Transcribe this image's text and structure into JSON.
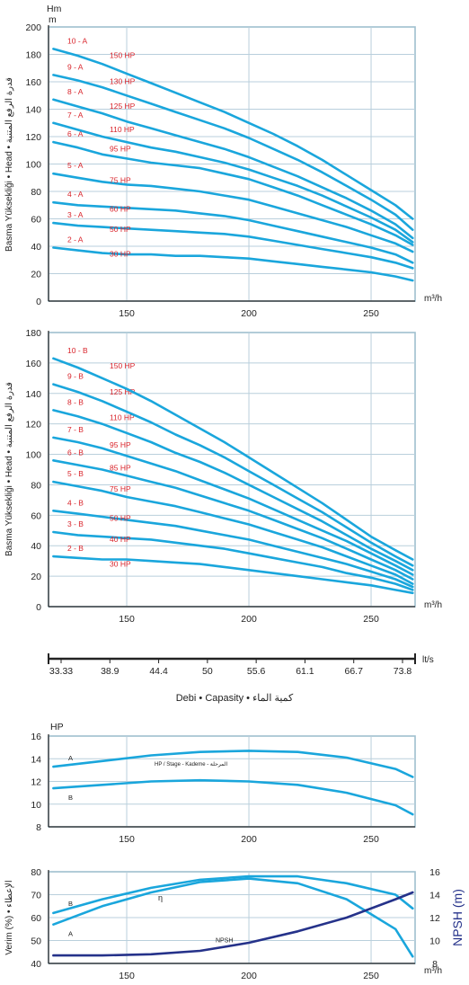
{
  "colors": {
    "curve": "#1aa6dc",
    "npsh": "#25328a",
    "grid": "#b9cfdc",
    "frame": "#9fbfcf",
    "label_red": "#d9242b",
    "axis": "#222222"
  },
  "chart_data": [
    {
      "id": "head-a",
      "type": "line",
      "title": "",
      "xlabel": "m³/h",
      "ylabel_units": [
        "Hm",
        "m"
      ],
      "ylabel_side": "Basma Yüksekliği • Head • قدرة الرفع المتنبة",
      "xlim": [
        118,
        268
      ],
      "ylim": [
        0,
        200
      ],
      "xticks": [
        "150",
        "200",
        "250"
      ],
      "yticks": [
        "0",
        "20",
        "40",
        "60",
        "80",
        "100",
        "120",
        "140",
        "160",
        "180",
        "200"
      ],
      "grid": true,
      "x": [
        120,
        130,
        140,
        150,
        160,
        170,
        180,
        190,
        200,
        210,
        220,
        230,
        240,
        250,
        260,
        267
      ],
      "series": [
        {
          "name": "2 - A",
          "hp": "30 HP",
          "values": [
            39,
            37,
            35,
            34,
            34,
            33,
            33,
            32,
            31,
            29,
            27,
            25,
            23,
            21,
            18,
            15
          ]
        },
        {
          "name": "3 - A",
          "hp": "50 HP",
          "values": [
            57,
            55,
            54,
            53,
            52,
            51,
            50,
            49,
            47,
            44,
            41,
            38,
            35,
            32,
            28,
            24
          ]
        },
        {
          "name": "4 - A",
          "hp": "60 HP",
          "values": [
            72,
            70,
            69,
            68,
            67,
            66,
            64,
            62,
            59,
            55,
            51,
            47,
            43,
            39,
            34,
            28
          ]
        },
        {
          "name": "5 - A",
          "hp": "75 HP",
          "values": [
            93,
            90,
            87,
            85,
            84,
            82,
            80,
            77,
            74,
            69,
            64,
            59,
            54,
            48,
            42,
            36
          ]
        },
        {
          "name": "6 - A",
          "hp": "95 HP",
          "values": [
            116,
            112,
            107,
            104,
            101,
            99,
            97,
            93,
            89,
            83,
            77,
            70,
            63,
            56,
            48,
            41
          ]
        },
        {
          "name": "7 - A",
          "hp": "110 HP",
          "values": [
            130,
            125,
            120,
            116,
            112,
            109,
            105,
            101,
            96,
            90,
            84,
            77,
            69,
            61,
            52,
            43
          ]
        },
        {
          "name": "8 - A",
          "hp": "125 HP",
          "values": [
            147,
            142,
            137,
            131,
            126,
            121,
            116,
            111,
            105,
            98,
            91,
            83,
            75,
            66,
            56,
            46
          ]
        },
        {
          "name": "9 - A",
          "hp": "130 HP",
          "values": [
            165,
            161,
            156,
            150,
            144,
            138,
            132,
            126,
            119,
            111,
            103,
            94,
            84,
            74,
            63,
            52
          ]
        },
        {
          "name": "10 - A",
          "hp": "150 HP",
          "values": [
            184,
            179,
            173,
            166,
            159,
            152,
            145,
            138,
            130,
            122,
            113,
            103,
            92,
            81,
            70,
            60
          ]
        }
      ]
    },
    {
      "id": "head-b",
      "type": "line",
      "title": "",
      "xlabel": "m³/h",
      "ylabel_side": "Basma Yüksekliği • Head • قدرة الرفع المتنبة",
      "xlim": [
        118,
        268
      ],
      "ylim": [
        0,
        180
      ],
      "xticks": [
        "150",
        "200",
        "250"
      ],
      "yticks": [
        "0",
        "20",
        "40",
        "60",
        "80",
        "100",
        "120",
        "140",
        "160",
        "180"
      ],
      "grid": true,
      "x": [
        120,
        130,
        140,
        150,
        160,
        170,
        180,
        190,
        200,
        210,
        220,
        230,
        240,
        250,
        260,
        267
      ],
      "series": [
        {
          "name": "2 - B",
          "hp": "30 HP",
          "values": [
            33,
            32,
            31,
            31,
            30,
            29,
            28,
            26,
            24,
            22,
            20,
            18,
            16,
            14,
            11,
            9
          ]
        },
        {
          "name": "3 - B",
          "hp": "40 HP",
          "values": [
            49,
            47,
            46,
            45,
            44,
            42,
            40,
            38,
            35,
            32,
            29,
            26,
            22,
            19,
            15,
            11
          ]
        },
        {
          "name": "4 - B",
          "hp": "50 HP",
          "values": [
            63,
            61,
            59,
            57,
            55,
            53,
            50,
            47,
            44,
            40,
            36,
            32,
            28,
            23,
            18,
            13
          ]
        },
        {
          "name": "5 - B",
          "hp": "75 HP",
          "values": [
            82,
            79,
            76,
            72,
            69,
            66,
            62,
            58,
            54,
            49,
            44,
            39,
            33,
            27,
            21,
            15
          ]
        },
        {
          "name": "6 - B",
          "hp": "85 HP",
          "values": [
            96,
            93,
            90,
            86,
            82,
            78,
            73,
            68,
            63,
            57,
            51,
            45,
            38,
            31,
            24,
            18
          ]
        },
        {
          "name": "7 - B",
          "hp": "95 HP",
          "values": [
            111,
            108,
            104,
            99,
            94,
            89,
            83,
            77,
            71,
            64,
            57,
            50,
            43,
            35,
            27,
            21
          ]
        },
        {
          "name": "8 - B",
          "hp": "110 HP",
          "values": [
            129,
            125,
            120,
            114,
            108,
            101,
            95,
            88,
            80,
            72,
            64,
            56,
            47,
            38,
            30,
            24
          ]
        },
        {
          "name": "9 - B",
          "hp": "125 HP",
          "values": [
            146,
            141,
            135,
            128,
            121,
            113,
            106,
            98,
            89,
            80,
            71,
            62,
            52,
            42,
            33,
            27
          ]
        },
        {
          "name": "10 - B",
          "hp": "150 HP",
          "values": [
            163,
            157,
            150,
            143,
            135,
            126,
            117,
            108,
            98,
            88,
            78,
            68,
            57,
            46,
            37,
            31
          ]
        }
      ]
    },
    {
      "id": "flow-scale",
      "type": "axis",
      "unit": "lt/s",
      "ticks": [
        "33.33",
        "38.9",
        "44.4",
        "50",
        "55.6",
        "61.1",
        "66.7",
        "73.8"
      ],
      "caption": "Debi • Capasity • كمية الماء"
    },
    {
      "id": "power",
      "type": "line",
      "title": "",
      "ylabel": "HP",
      "annotation": "HP / Stage - Kademe - المرحلة",
      "xlim": [
        118,
        268
      ],
      "ylim": [
        8,
        16
      ],
      "xticks": [
        "150",
        "200",
        "250"
      ],
      "yticks": [
        "8",
        "10",
        "12",
        "14",
        "16"
      ],
      "grid": true,
      "x": [
        120,
        140,
        160,
        180,
        200,
        220,
        240,
        260,
        267
      ],
      "series": [
        {
          "name": "A",
          "values": [
            13.3,
            13.8,
            14.3,
            14.6,
            14.7,
            14.6,
            14.1,
            13.1,
            12.4
          ]
        },
        {
          "name": "B",
          "values": [
            11.4,
            11.7,
            12.0,
            12.1,
            12.0,
            11.7,
            11.0,
            9.9,
            9.1
          ]
        }
      ]
    },
    {
      "id": "efficiency-npsh",
      "type": "line",
      "title": "",
      "ylabel_left": "Verim (%) • الإعطاء",
      "ylabel_right": "NPSH (m)",
      "xlabel": "m³/h",
      "eta_label": "η",
      "xlim": [
        118,
        268
      ],
      "ylim": [
        40,
        80
      ],
      "ylim_right": [
        8,
        16
      ],
      "xticks": [
        "150",
        "200",
        "250"
      ],
      "yticks": [
        "40",
        "50",
        "60",
        "70",
        "80"
      ],
      "yticks_right": [
        "8",
        "10",
        "12",
        "14",
        "16"
      ],
      "grid": true,
      "x": [
        120,
        140,
        160,
        180,
        200,
        220,
        240,
        260,
        267
      ],
      "series": [
        {
          "name": "A",
          "axis": "left",
          "values": [
            57,
            65,
            71,
            75.5,
            77,
            75,
            68,
            55,
            43
          ]
        },
        {
          "name": "B",
          "axis": "left",
          "values": [
            62,
            68,
            73,
            76.5,
            78,
            78,
            75,
            70,
            64
          ]
        },
        {
          "name": "NPSH",
          "axis": "right",
          "values": [
            8.7,
            8.7,
            8.8,
            9.1,
            9.8,
            10.8,
            12.0,
            13.6,
            14.2
          ]
        }
      ]
    }
  ]
}
